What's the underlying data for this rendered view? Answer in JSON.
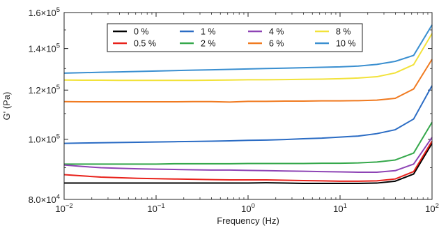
{
  "chart_data": {
    "type": "line",
    "title": "",
    "xlabel": "Frequency (Hz)",
    "ylabel": "G' (Pa)",
    "xscale": "log",
    "yscale": "log",
    "xlim": [
      0.01,
      100
    ],
    "ylim": [
      80000,
      160000
    ],
    "grid": false,
    "legend_position": "top-center",
    "x_tick_labels": [
      {
        "value": 0.01,
        "base": "10",
        "exp": "−2"
      },
      {
        "value": 0.1,
        "base": "10",
        "exp": "−1"
      },
      {
        "value": 1,
        "base": "10",
        "exp": "0"
      },
      {
        "value": 10,
        "base": "10",
        "exp": "1"
      },
      {
        "value": 100,
        "base": "10",
        "exp": "2"
      }
    ],
    "y_tick_labels": [
      {
        "value": 80000,
        "mant": "8.0×10",
        "exp": "4"
      },
      {
        "value": 100000,
        "mant": "1.0×10",
        "exp": "5"
      },
      {
        "value": 120000,
        "mant": "1.2×10",
        "exp": "5"
      },
      {
        "value": 140000,
        "mant": "1.4×10",
        "exp": "5"
      },
      {
        "value": 160000,
        "mant": "1.6×10",
        "exp": "5"
      }
    ],
    "x": [
      0.01,
      0.0158,
      0.0251,
      0.0398,
      0.0631,
      0.1,
      0.158,
      0.251,
      0.398,
      0.631,
      1,
      1.58,
      2.51,
      3.98,
      6.31,
      10,
      15.8,
      25.1,
      39.8,
      63.1,
      100
    ],
    "series": [
      {
        "name": "0 %",
        "color": "#000000",
        "values": [
          85000,
          85000,
          85000,
          85000,
          85000,
          85000,
          85000,
          85000,
          85000,
          85000,
          85000,
          85100,
          85000,
          84900,
          84900,
          84900,
          84900,
          85000,
          85600,
          87900,
          98500
        ]
      },
      {
        "name": "0.5 %",
        "color": "#e8211a",
        "values": [
          87700,
          87300,
          86900,
          86700,
          86500,
          86400,
          86300,
          86200,
          86100,
          86000,
          86000,
          86000,
          85900,
          85800,
          85700,
          85600,
          85600,
          85700,
          86300,
          88700,
          99300
        ]
      },
      {
        "name": "1 %",
        "color": "#2b6cc4",
        "values": [
          98500,
          98600,
          98700,
          98800,
          98900,
          99000,
          99100,
          99200,
          99300,
          99400,
          99600,
          99700,
          99900,
          100200,
          100400,
          100800,
          101200,
          102100,
          103600,
          107800,
          122000
        ]
      },
      {
        "name": "2 %",
        "color": "#35a84b",
        "values": [
          91200,
          91200,
          91200,
          91200,
          91200,
          91200,
          91300,
          91300,
          91300,
          91300,
          91400,
          91400,
          91400,
          91400,
          91500,
          91500,
          91600,
          91900,
          92600,
          95000,
          106500
        ]
      },
      {
        "name": "4 %",
        "color": "#8e44b5",
        "values": [
          90900,
          90400,
          90000,
          89800,
          89600,
          89500,
          89400,
          89300,
          89200,
          89200,
          89100,
          89000,
          88900,
          88800,
          88700,
          88600,
          88500,
          88500,
          89000,
          91200,
          100700
        ]
      },
      {
        "name": "6 %",
        "color": "#f07a20",
        "values": [
          115000,
          114900,
          114900,
          114900,
          114900,
          114900,
          114900,
          115000,
          115000,
          114800,
          115100,
          115100,
          115200,
          115200,
          115300,
          115300,
          115400,
          115600,
          116400,
          120500,
          134500
        ]
      },
      {
        "name": "8 %",
        "color": "#f2e23a",
        "values": [
          124600,
          124500,
          124500,
          124400,
          124400,
          124400,
          124400,
          124400,
          124500,
          124600,
          124700,
          124700,
          124800,
          124900,
          125000,
          125200,
          125500,
          126100,
          127900,
          131900,
          148000
        ]
      },
      {
        "name": "10 %",
        "color": "#3a8fd0",
        "values": [
          127800,
          128000,
          128200,
          128400,
          128600,
          128800,
          129000,
          129200,
          129400,
          129600,
          129800,
          130000,
          130200,
          130400,
          130600,
          130800,
          131200,
          132000,
          133500,
          136500,
          152800
        ]
      }
    ],
    "legend_layout": [
      [
        "0 %",
        "1 %",
        "4 %",
        "8 %"
      ],
      [
        "0.5 %",
        "2 %",
        "6 %",
        "10 %"
      ]
    ]
  }
}
